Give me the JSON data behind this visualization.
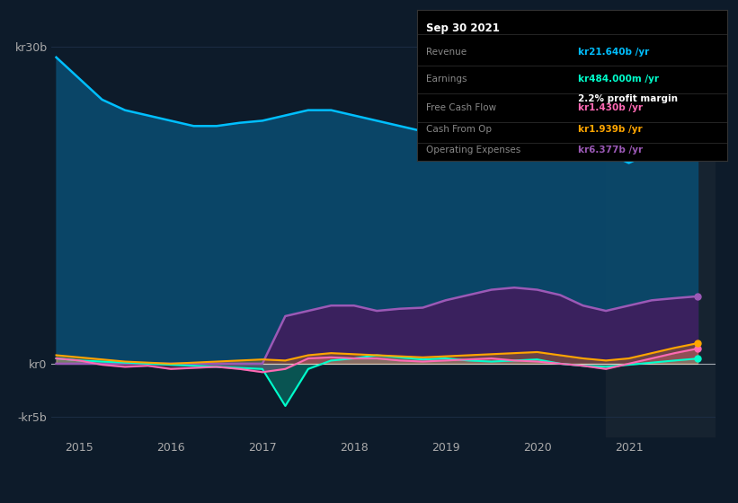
{
  "bg_color": "#0d1b2a",
  "ylabel_top": "kr30b",
  "ylabel_zero": "kr0",
  "ylabel_bottom": "-kr5b",
  "ylim": [
    -7000000000,
    33000000000
  ],
  "xlim_start": 2014.7,
  "xlim_end": 2021.95,
  "xticks": [
    2015,
    2016,
    2017,
    2018,
    2019,
    2020,
    2021
  ],
  "highlight_start": 2020.75,
  "highlight_end": 2021.95,
  "highlight_color": "#162330",
  "revenue_color": "#00bfff",
  "earnings_color": "#00ffcc",
  "fcf_color": "#ff69b4",
  "cashfromop_color": "#ffa500",
  "opex_color": "#9b59b6",
  "revenue_fill_color": "#0a4a6e",
  "opex_fill_color": "#3d1f5e",
  "info_box": {
    "title": "Sep 30 2021",
    "revenue_label": "Revenue",
    "revenue_value": "kr21.640b",
    "revenue_color": "#00bfff",
    "earnings_label": "Earnings",
    "earnings_value": "kr484.000m",
    "earnings_color": "#00ffcc",
    "profit_margin": "2.2%",
    "fcf_label": "Free Cash Flow",
    "fcf_value": "kr1.430b",
    "fcf_color": "#ff69b4",
    "cashop_label": "Cash From Op",
    "cashop_value": "kr1.939b",
    "cashop_color": "#ffa500",
    "opex_label": "Operating Expenses",
    "opex_value": "kr6.377b",
    "opex_color": "#9b59b6"
  },
  "legend": [
    {
      "label": "Revenue",
      "color": "#00bfff"
    },
    {
      "label": "Earnings",
      "color": "#00ffcc"
    },
    {
      "label": "Free Cash Flow",
      "color": "#ff69b4"
    },
    {
      "label": "Cash From Op",
      "color": "#ffa500"
    },
    {
      "label": "Operating Expenses",
      "color": "#9b59b6"
    }
  ],
  "time": [
    2014.75,
    2015.0,
    2015.25,
    2015.5,
    2015.75,
    2016.0,
    2016.25,
    2016.5,
    2016.75,
    2017.0,
    2017.25,
    2017.5,
    2017.75,
    2018.0,
    2018.25,
    2018.5,
    2018.75,
    2019.0,
    2019.25,
    2019.5,
    2019.75,
    2020.0,
    2020.25,
    2020.5,
    2020.75,
    2021.0,
    2021.25,
    2021.5,
    2021.75
  ],
  "revenue": [
    29000000000,
    27000000000,
    25000000000,
    24000000000,
    23500000000,
    23000000000,
    22500000000,
    22500000000,
    22800000000,
    23000000000,
    23500000000,
    24000000000,
    24000000000,
    23500000000,
    23000000000,
    22500000000,
    22000000000,
    22500000000,
    24000000000,
    25000000000,
    26000000000,
    27000000000,
    25000000000,
    22000000000,
    20000000000,
    19000000000,
    20000000000,
    21000000000,
    21640000000
  ],
  "earnings": [
    500000000,
    300000000,
    200000000,
    100000000,
    0,
    -100000000,
    -200000000,
    -300000000,
    -400000000,
    -500000000,
    -4000000000,
    -500000000,
    300000000,
    500000000,
    800000000,
    600000000,
    400000000,
    500000000,
    300000000,
    200000000,
    300000000,
    400000000,
    0,
    -200000000,
    -300000000,
    -100000000,
    100000000,
    300000000,
    484000000
  ],
  "fcf": [
    500000000,
    300000000,
    -100000000,
    -300000000,
    -200000000,
    -500000000,
    -400000000,
    -300000000,
    -500000000,
    -800000000,
    -500000000,
    500000000,
    600000000,
    500000000,
    500000000,
    300000000,
    200000000,
    300000000,
    400000000,
    500000000,
    300000000,
    200000000,
    0,
    -200000000,
    -500000000,
    0,
    500000000,
    1000000000,
    1430000000
  ],
  "cashfromop": [
    800000000,
    600000000,
    400000000,
    200000000,
    100000000,
    0,
    100000000,
    200000000,
    300000000,
    400000000,
    300000000,
    800000000,
    1000000000,
    900000000,
    800000000,
    700000000,
    600000000,
    700000000,
    800000000,
    900000000,
    1000000000,
    1100000000,
    800000000,
    500000000,
    300000000,
    500000000,
    1000000000,
    1500000000,
    1939000000
  ],
  "opex": [
    0,
    0,
    0,
    0,
    0,
    0,
    0,
    0,
    0,
    0,
    4500000000,
    5000000000,
    5500000000,
    5500000000,
    5000000000,
    5200000000,
    5300000000,
    6000000000,
    6500000000,
    7000000000,
    7200000000,
    7000000000,
    6500000000,
    5500000000,
    5000000000,
    5500000000,
    6000000000,
    6200000000,
    6377000000
  ]
}
